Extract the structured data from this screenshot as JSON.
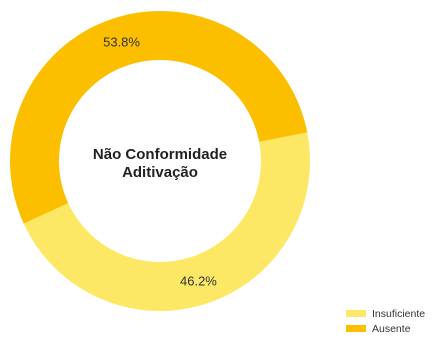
{
  "chart_data": {
    "type": "pie",
    "variant": "donut",
    "center_title": [
      "Não Conformidade",
      "Aditivação"
    ],
    "slices": [
      {
        "name": "Insuficiente",
        "value": 46.2,
        "label": "46.2%",
        "color": "#FDE865"
      },
      {
        "name": "Ausente",
        "value": 53.8,
        "label": "53.8%",
        "color": "#FCBF00"
      }
    ],
    "legend": {
      "placement": "bottom-right",
      "entries": [
        "Insuficiente",
        "Ausente"
      ]
    }
  }
}
